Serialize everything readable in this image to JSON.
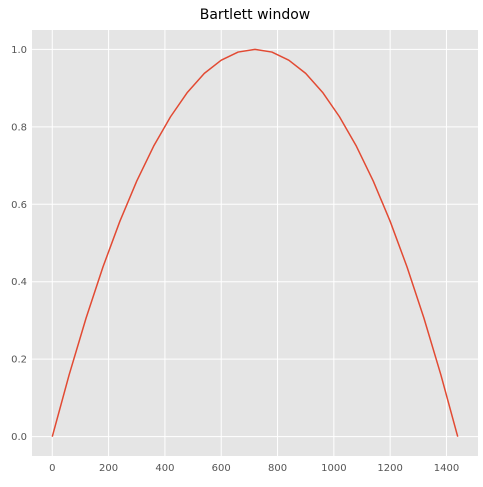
{
  "chart_data": {
    "type": "line",
    "title": "Bartlett window",
    "xlabel": "",
    "ylabel": "",
    "xlim": [
      -72,
      1512
    ],
    "ylim": [
      -0.05,
      1.05
    ],
    "x_ticks": [
      0,
      200,
      400,
      600,
      800,
      1000,
      1200,
      1400
    ],
    "y_ticks": [
      0.0,
      0.2,
      0.4,
      0.6,
      0.8,
      1.0
    ],
    "x_tick_labels": [
      "0",
      "200",
      "400",
      "600",
      "800",
      "1000",
      "1200",
      "1400"
    ],
    "y_tick_labels": [
      "0.0",
      "0.2",
      "0.4",
      "0.6",
      "0.8",
      "1.0"
    ],
    "grid": true,
    "series": [
      {
        "color": "#e24a33",
        "x": [
          0,
          60,
          120,
          180,
          240,
          300,
          360,
          420,
          480,
          540,
          600,
          660,
          720,
          780,
          840,
          900,
          960,
          1020,
          1080,
          1140,
          1200,
          1260,
          1320,
          1380,
          1440
        ],
        "y": [
          0.0,
          0.16,
          0.306,
          0.438,
          0.556,
          0.66,
          0.75,
          0.826,
          0.889,
          0.938,
          0.972,
          0.993,
          1.0,
          0.993,
          0.972,
          0.938,
          0.889,
          0.826,
          0.75,
          0.66,
          0.556,
          0.438,
          0.306,
          0.16,
          0.0
        ]
      }
    ]
  },
  "colors": {
    "plot_background": "#e5e5e5",
    "grid": "#ffffff",
    "line": "#e24a33",
    "tick_label": "#555555"
  }
}
